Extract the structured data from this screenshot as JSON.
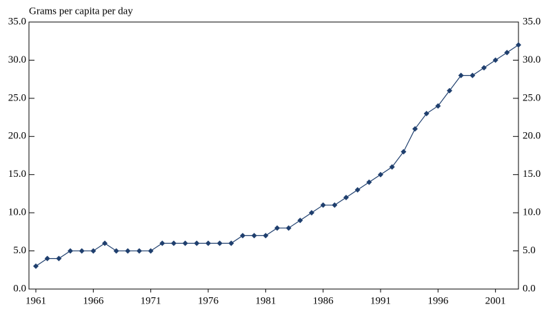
{
  "chart_data": {
    "type": "line",
    "y_label": "Grams per capita per day",
    "x": [
      1961,
      1962,
      1963,
      1964,
      1965,
      1966,
      1967,
      1968,
      1969,
      1970,
      1971,
      1972,
      1973,
      1974,
      1975,
      1976,
      1977,
      1978,
      1979,
      1980,
      1981,
      1982,
      1983,
      1984,
      1985,
      1986,
      1987,
      1988,
      1989,
      1990,
      1991,
      1992,
      1993,
      1994,
      1995,
      1996,
      1997,
      1998,
      1999,
      2000,
      2001,
      2002,
      2003
    ],
    "series": [
      {
        "color": "#1f3f6e",
        "values": [
          3,
          4,
          4,
          5,
          5,
          5,
          6,
          5,
          5,
          5,
          5,
          6,
          6,
          6,
          6,
          6,
          6,
          6,
          7,
          7,
          7,
          8,
          8,
          9,
          10,
          11,
          11,
          12,
          13,
          14,
          15,
          16,
          18,
          21,
          23,
          24,
          26,
          28,
          28,
          29,
          30,
          31,
          32
        ]
      }
    ],
    "xlim": [
      1960.4,
      2003
    ],
    "xticks": [
      1961,
      1966,
      1971,
      1976,
      1981,
      1986,
      1991,
      1996,
      2001
    ],
    "ylim": [
      0,
      35
    ],
    "yticks": [
      {
        "value": 0,
        "label": "0.0"
      },
      {
        "value": 5,
        "label": "5.0"
      },
      {
        "value": 10,
        "label": "10.0"
      },
      {
        "value": 15,
        "label": "15.0"
      },
      {
        "value": 20,
        "label": "20.0"
      },
      {
        "value": 25,
        "label": "25.0"
      },
      {
        "value": 30,
        "label": "30.0"
      },
      {
        "value": 35,
        "label": "35.0"
      }
    ],
    "y2lim": [
      0,
      35
    ],
    "y2ticks": [
      {
        "value": 0,
        "label": "0.0"
      },
      {
        "value": 5,
        "label": "5.0"
      },
      {
        "value": 10,
        "label": "10.0"
      },
      {
        "value": 15,
        "label": "15.0"
      },
      {
        "value": 20,
        "label": "20.0"
      },
      {
        "value": 25,
        "label": "25.0"
      },
      {
        "value": 30,
        "label": "30.0"
      },
      {
        "value": 35,
        "label": "35.0"
      }
    ],
    "grid": false
  }
}
